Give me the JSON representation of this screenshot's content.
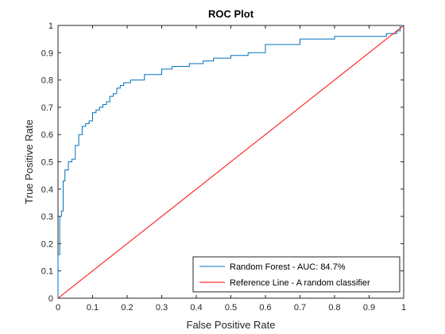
{
  "chart_data": {
    "type": "line",
    "title": "ROC Plot",
    "xlabel": "False Positive Rate",
    "ylabel": "True Positive Rate",
    "xlim": [
      0,
      1
    ],
    "ylim": [
      0,
      1
    ],
    "xticks": [
      "0",
      "0.1",
      "0.2",
      "0.3",
      "0.4",
      "0.5",
      "0.6",
      "0.7",
      "0.8",
      "0.9",
      "1"
    ],
    "yticks": [
      "0",
      "0.1",
      "0.2",
      "0.3",
      "0.4",
      "0.5",
      "0.6",
      "0.7",
      "0.8",
      "0.9",
      "1"
    ],
    "grid": false,
    "legend_position": "bottom-right",
    "series": [
      {
        "name": "Random Forest - AUC: 84.7%",
        "color": "#0072BD",
        "style": "step",
        "x": [
          0,
          0,
          0.005,
          0.005,
          0.01,
          0.01,
          0.015,
          0.015,
          0.02,
          0.02,
          0.03,
          0.03,
          0.04,
          0.04,
          0.05,
          0.05,
          0.06,
          0.06,
          0.07,
          0.07,
          0.08,
          0.08,
          0.09,
          0.09,
          0.1,
          0.1,
          0.11,
          0.11,
          0.12,
          0.12,
          0.13,
          0.13,
          0.14,
          0.14,
          0.15,
          0.15,
          0.16,
          0.16,
          0.17,
          0.17,
          0.18,
          0.18,
          0.19,
          0.19,
          0.21,
          0.21,
          0.25,
          0.25,
          0.3,
          0.3,
          0.33,
          0.33,
          0.38,
          0.38,
          0.42,
          0.42,
          0.45,
          0.45,
          0.5,
          0.5,
          0.55,
          0.55,
          0.6,
          0.6,
          0.7,
          0.7,
          0.8,
          0.8,
          0.95,
          0.95,
          0.98,
          0.98,
          0.99,
          0.99,
          1
        ],
        "y": [
          0,
          0.16,
          0.16,
          0.3,
          0.3,
          0.32,
          0.32,
          0.43,
          0.43,
          0.47,
          0.47,
          0.5,
          0.5,
          0.51,
          0.51,
          0.56,
          0.56,
          0.6,
          0.6,
          0.63,
          0.63,
          0.64,
          0.64,
          0.65,
          0.65,
          0.68,
          0.68,
          0.69,
          0.69,
          0.7,
          0.7,
          0.71,
          0.71,
          0.72,
          0.72,
          0.74,
          0.74,
          0.75,
          0.75,
          0.77,
          0.77,
          0.78,
          0.78,
          0.79,
          0.79,
          0.8,
          0.8,
          0.82,
          0.82,
          0.84,
          0.84,
          0.85,
          0.85,
          0.86,
          0.86,
          0.87,
          0.87,
          0.88,
          0.88,
          0.89,
          0.89,
          0.9,
          0.9,
          0.93,
          0.93,
          0.95,
          0.95,
          0.96,
          0.96,
          0.97,
          0.97,
          0.98,
          0.98,
          1,
          1
        ]
      },
      {
        "name": "Reference Line - A random classifier",
        "color": "#FF0000",
        "style": "line",
        "x": [
          0,
          1
        ],
        "y": [
          0,
          1
        ]
      }
    ]
  }
}
